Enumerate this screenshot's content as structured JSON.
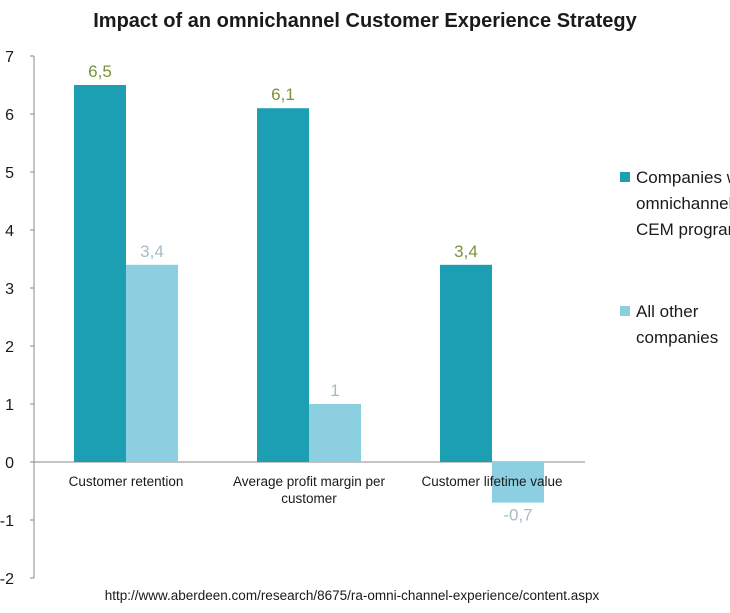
{
  "chart_data": {
    "type": "bar",
    "title": "Impact of an omnichannel Customer Experience Strategy",
    "categories": [
      [
        "Customer retention"
      ],
      [
        "Average profit margin per",
        "customer"
      ],
      [
        "Customer lifetime value"
      ]
    ],
    "series": [
      {
        "name": [
          "Companies with",
          "omnichannel",
          "CEM programs"
        ],
        "values": [
          6.5,
          6.1,
          3.4
        ],
        "labels": [
          "6,5",
          "6,1",
          "3,4"
        ],
        "color": "#1d9fb3",
        "label_color": "#77933c"
      },
      {
        "name": [
          "All other",
          "companies"
        ],
        "values": [
          3.4,
          1,
          -0.7
        ],
        "labels": [
          "3,4",
          "1",
          "-0,7"
        ],
        "color": "#8ccfe0",
        "label_color": "#a8bcc4"
      }
    ],
    "ylim": [
      -2,
      7
    ],
    "yticks": [
      -2,
      -1,
      0,
      1,
      2,
      3,
      4,
      5,
      6,
      7
    ],
    "grid": false,
    "legend_position": "right",
    "xlabel": "",
    "ylabel": ""
  },
  "source": "http://www.aberdeen.com/research/8675/ra-omni-channel-experience/content.aspx"
}
